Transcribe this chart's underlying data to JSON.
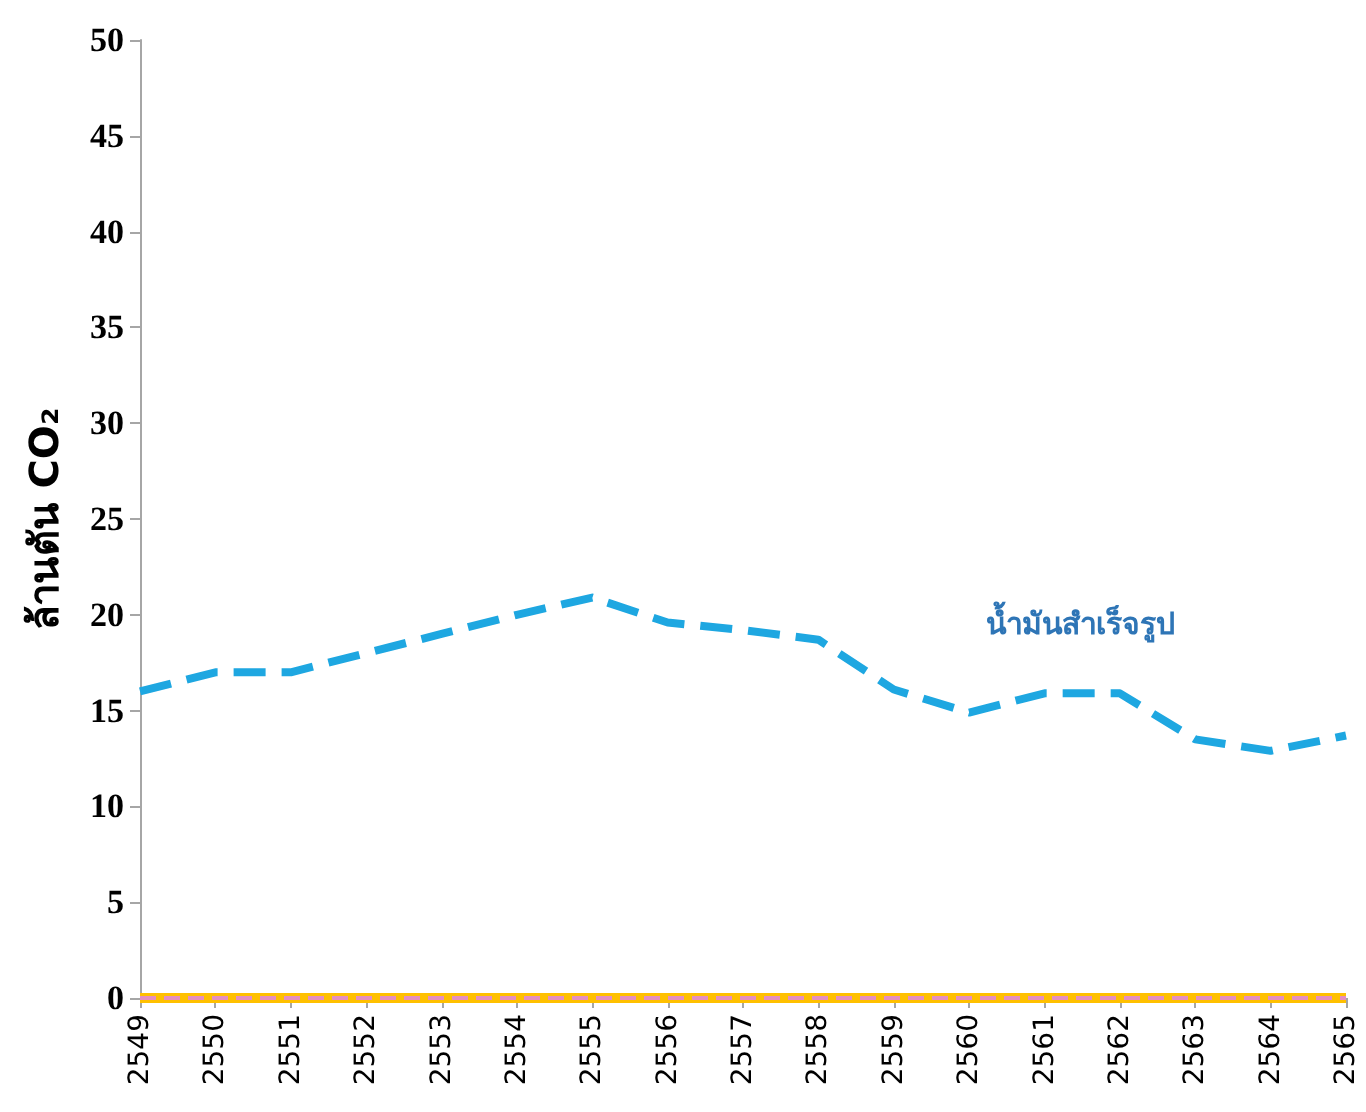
{
  "chart_data": {
    "type": "line",
    "ylabel": "ล้านตัน CO₂",
    "categories": [
      "2549",
      "2550",
      "2551",
      "2552",
      "2553",
      "2554",
      "2555",
      "2556",
      "2557",
      "2558",
      "2559",
      "2560",
      "2561",
      "2562",
      "2563",
      "2564",
      "2565"
    ],
    "series": [
      {
        "name": "น้ำมันสำเร็จรูป",
        "color": "#1ea7e1",
        "line_style": "dashed",
        "values": [
          16,
          17,
          17,
          18,
          19,
          20,
          20.9,
          19.6,
          19.2,
          18.7,
          16.1,
          14.9,
          15.9,
          15.9,
          13.5,
          12.9,
          13.7
        ]
      },
      {
        "color": "#ffc000",
        "line_style": "solid",
        "values": [
          0,
          0,
          0,
          0,
          0,
          0,
          0,
          0,
          0,
          0,
          0,
          0,
          0,
          0,
          0,
          0,
          0
        ]
      },
      {
        "color": "#e58fbf",
        "line_style": "dashed",
        "values": [
          0,
          0,
          0,
          0,
          0,
          0,
          0,
          0,
          0,
          0,
          0,
          0,
          0,
          0,
          0,
          0,
          0
        ]
      }
    ],
    "ylim": [
      0,
      50
    ],
    "yticks": [
      0,
      5,
      10,
      15,
      20,
      25,
      30,
      35,
      40,
      45,
      50
    ],
    "grid": false,
    "legend": false,
    "marker": "none"
  }
}
